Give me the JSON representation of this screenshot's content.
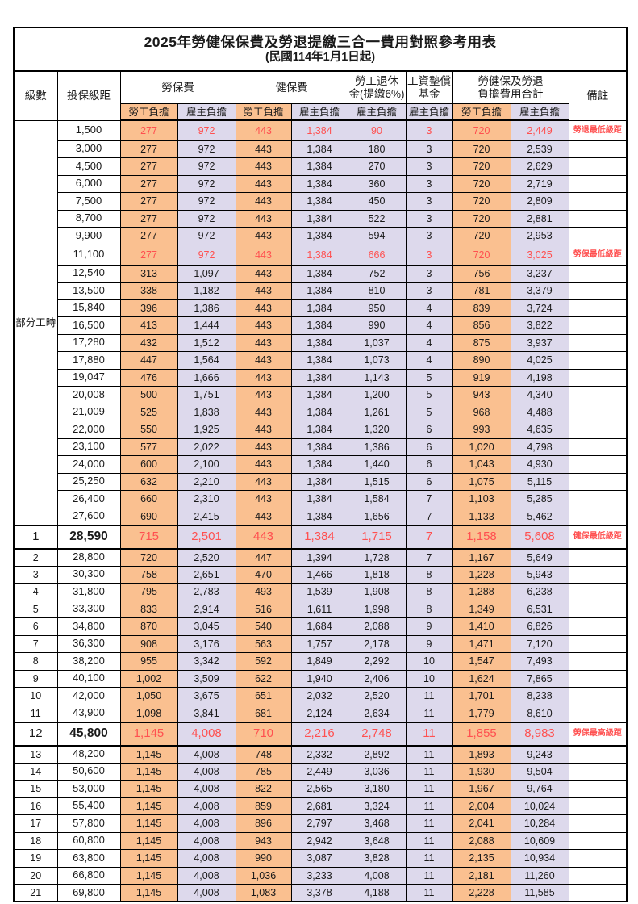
{
  "title": "2025年勞健保保費及勞退提繳三合一費用對照參考用表",
  "subtitle": "(民國114年1月1日起)",
  "colors": {
    "employee_bg": "#FAC090",
    "employer_bg": "#DDD9EC",
    "red": "#FF5050",
    "border": "#000000"
  },
  "header": {
    "level": "級數",
    "bracket": "投保級距",
    "labor_group": "勞保費",
    "health_group": "健保費",
    "pension_line1": "勞工退休",
    "pension_line2": "金(提繳6%)",
    "fund_line1": "工資墊償",
    "fund_line2": "基金",
    "total_line1": "勞健保及勞退",
    "total_line2": "負擔費用合計",
    "note": "備註",
    "employee": "勞工負擔",
    "employer": "雇主負擔"
  },
  "part_time_label": "部分工時",
  "part_time_rowspan": 23,
  "rows": [
    {
      "level": "",
      "bracket": "1,500",
      "labor_emp": "277",
      "labor_er": "972",
      "health_emp": "443",
      "health_er": "1,384",
      "pension": "90",
      "fund": "3",
      "total_emp": "720",
      "total_er": "2,449",
      "note": "勞退最低級距",
      "red": true,
      "tall": true,
      "big": false
    },
    {
      "level": "",
      "bracket": "3,000",
      "labor_emp": "277",
      "labor_er": "972",
      "health_emp": "443",
      "health_er": "1,384",
      "pension": "180",
      "fund": "3",
      "total_emp": "720",
      "total_er": "2,539",
      "note": "",
      "red": false,
      "tall": false,
      "big": false
    },
    {
      "level": "",
      "bracket": "4,500",
      "labor_emp": "277",
      "labor_er": "972",
      "health_emp": "443",
      "health_er": "1,384",
      "pension": "270",
      "fund": "3",
      "total_emp": "720",
      "total_er": "2,629",
      "note": "",
      "red": false,
      "tall": false,
      "big": false
    },
    {
      "level": "",
      "bracket": "6,000",
      "labor_emp": "277",
      "labor_er": "972",
      "health_emp": "443",
      "health_er": "1,384",
      "pension": "360",
      "fund": "3",
      "total_emp": "720",
      "total_er": "2,719",
      "note": "",
      "red": false,
      "tall": false,
      "big": false
    },
    {
      "level": "",
      "bracket": "7,500",
      "labor_emp": "277",
      "labor_er": "972",
      "health_emp": "443",
      "health_er": "1,384",
      "pension": "450",
      "fund": "3",
      "total_emp": "720",
      "total_er": "2,809",
      "note": "",
      "red": false,
      "tall": false,
      "big": false
    },
    {
      "level": "",
      "bracket": "8,700",
      "labor_emp": "277",
      "labor_er": "972",
      "health_emp": "443",
      "health_er": "1,384",
      "pension": "522",
      "fund": "3",
      "total_emp": "720",
      "total_er": "2,881",
      "note": "",
      "red": false,
      "tall": false,
      "big": false
    },
    {
      "level": "",
      "bracket": "9,900",
      "labor_emp": "277",
      "labor_er": "972",
      "health_emp": "443",
      "health_er": "1,384",
      "pension": "594",
      "fund": "3",
      "total_emp": "720",
      "total_er": "2,953",
      "note": "",
      "red": false,
      "tall": false,
      "big": false
    },
    {
      "level": "",
      "bracket": "11,100",
      "labor_emp": "277",
      "labor_er": "972",
      "health_emp": "443",
      "health_er": "1,384",
      "pension": "666",
      "fund": "3",
      "total_emp": "720",
      "total_er": "3,025",
      "note": "勞保最低級距",
      "red": true,
      "tall": true,
      "big": false
    },
    {
      "level": "",
      "bracket": "12,540",
      "labor_emp": "313",
      "labor_er": "1,097",
      "health_emp": "443",
      "health_er": "1,384",
      "pension": "752",
      "fund": "3",
      "total_emp": "756",
      "total_er": "3,237",
      "note": "",
      "red": false,
      "tall": false,
      "big": false
    },
    {
      "level": "",
      "bracket": "13,500",
      "labor_emp": "338",
      "labor_er": "1,182",
      "health_emp": "443",
      "health_er": "1,384",
      "pension": "810",
      "fund": "3",
      "total_emp": "781",
      "total_er": "3,379",
      "note": "",
      "red": false,
      "tall": false,
      "big": false
    },
    {
      "level": "",
      "bracket": "15,840",
      "labor_emp": "396",
      "labor_er": "1,386",
      "health_emp": "443",
      "health_er": "1,384",
      "pension": "950",
      "fund": "4",
      "total_emp": "839",
      "total_er": "3,724",
      "note": "",
      "red": false,
      "tall": false,
      "big": false
    },
    {
      "level": "",
      "bracket": "16,500",
      "labor_emp": "413",
      "labor_er": "1,444",
      "health_emp": "443",
      "health_er": "1,384",
      "pension": "990",
      "fund": "4",
      "total_emp": "856",
      "total_er": "3,822",
      "note": "",
      "red": false,
      "tall": false,
      "big": false
    },
    {
      "level": "",
      "bracket": "17,280",
      "labor_emp": "432",
      "labor_er": "1,512",
      "health_emp": "443",
      "health_er": "1,384",
      "pension": "1,037",
      "fund": "4",
      "total_emp": "875",
      "total_er": "3,937",
      "note": "",
      "red": false,
      "tall": false,
      "big": false
    },
    {
      "level": "",
      "bracket": "17,880",
      "labor_emp": "447",
      "labor_er": "1,564",
      "health_emp": "443",
      "health_er": "1,384",
      "pension": "1,073",
      "fund": "4",
      "total_emp": "890",
      "total_er": "4,025",
      "note": "",
      "red": false,
      "tall": false,
      "big": false
    },
    {
      "level": "",
      "bracket": "19,047",
      "labor_emp": "476",
      "labor_er": "1,666",
      "health_emp": "443",
      "health_er": "1,384",
      "pension": "1,143",
      "fund": "5",
      "total_emp": "919",
      "total_er": "4,198",
      "note": "",
      "red": false,
      "tall": false,
      "big": false
    },
    {
      "level": "",
      "bracket": "20,008",
      "labor_emp": "500",
      "labor_er": "1,751",
      "health_emp": "443",
      "health_er": "1,384",
      "pension": "1,200",
      "fund": "5",
      "total_emp": "943",
      "total_er": "4,340",
      "note": "",
      "red": false,
      "tall": false,
      "big": false
    },
    {
      "level": "",
      "bracket": "21,009",
      "labor_emp": "525",
      "labor_er": "1,838",
      "health_emp": "443",
      "health_er": "1,384",
      "pension": "1,261",
      "fund": "5",
      "total_emp": "968",
      "total_er": "4,488",
      "note": "",
      "red": false,
      "tall": false,
      "big": false
    },
    {
      "level": "",
      "bracket": "22,000",
      "labor_emp": "550",
      "labor_er": "1,925",
      "health_emp": "443",
      "health_er": "1,384",
      "pension": "1,320",
      "fund": "6",
      "total_emp": "993",
      "total_er": "4,635",
      "note": "",
      "red": false,
      "tall": false,
      "big": false
    },
    {
      "level": "",
      "bracket": "23,100",
      "labor_emp": "577",
      "labor_er": "2,022",
      "health_emp": "443",
      "health_er": "1,384",
      "pension": "1,386",
      "fund": "6",
      "total_emp": "1,020",
      "total_er": "4,798",
      "note": "",
      "red": false,
      "tall": false,
      "big": false
    },
    {
      "level": "",
      "bracket": "24,000",
      "labor_emp": "600",
      "labor_er": "2,100",
      "health_emp": "443",
      "health_er": "1,384",
      "pension": "1,440",
      "fund": "6",
      "total_emp": "1,043",
      "total_er": "4,930",
      "note": "",
      "red": false,
      "tall": false,
      "big": false
    },
    {
      "level": "",
      "bracket": "25,250",
      "labor_emp": "632",
      "labor_er": "2,210",
      "health_emp": "443",
      "health_er": "1,384",
      "pension": "1,515",
      "fund": "6",
      "total_emp": "1,075",
      "total_er": "5,115",
      "note": "",
      "red": false,
      "tall": false,
      "big": false
    },
    {
      "level": "",
      "bracket": "26,400",
      "labor_emp": "660",
      "labor_er": "2,310",
      "health_emp": "443",
      "health_er": "1,384",
      "pension": "1,584",
      "fund": "7",
      "total_emp": "1,103",
      "total_er": "5,285",
      "note": "",
      "red": false,
      "tall": false,
      "big": false
    },
    {
      "level": "",
      "bracket": "27,600",
      "labor_emp": "690",
      "labor_er": "2,415",
      "health_emp": "443",
      "health_er": "1,384",
      "pension": "1,656",
      "fund": "7",
      "total_emp": "1,133",
      "total_er": "5,462",
      "note": "",
      "red": false,
      "tall": false,
      "big": false
    },
    {
      "level": "1",
      "bracket": "28,590",
      "labor_emp": "715",
      "labor_er": "2,501",
      "health_emp": "443",
      "health_er": "1,384",
      "pension": "1,715",
      "fund": "7",
      "total_emp": "1,158",
      "total_er": "5,608",
      "note": "健保最低級距",
      "red": true,
      "tall": false,
      "big": true
    },
    {
      "level": "2",
      "bracket": "28,800",
      "labor_emp": "720",
      "labor_er": "2,520",
      "health_emp": "447",
      "health_er": "1,394",
      "pension": "1,728",
      "fund": "7",
      "total_emp": "1,167",
      "total_er": "5,649",
      "note": "",
      "red": false,
      "tall": false,
      "big": false
    },
    {
      "level": "3",
      "bracket": "30,300",
      "labor_emp": "758",
      "labor_er": "2,651",
      "health_emp": "470",
      "health_er": "1,466",
      "pension": "1,818",
      "fund": "8",
      "total_emp": "1,228",
      "total_er": "5,943",
      "note": "",
      "red": false,
      "tall": false,
      "big": false
    },
    {
      "level": "4",
      "bracket": "31,800",
      "labor_emp": "795",
      "labor_er": "2,783",
      "health_emp": "493",
      "health_er": "1,539",
      "pension": "1,908",
      "fund": "8",
      "total_emp": "1,288",
      "total_er": "6,238",
      "note": "",
      "red": false,
      "tall": false,
      "big": false
    },
    {
      "level": "5",
      "bracket": "33,300",
      "labor_emp": "833",
      "labor_er": "2,914",
      "health_emp": "516",
      "health_er": "1,611",
      "pension": "1,998",
      "fund": "8",
      "total_emp": "1,349",
      "total_er": "6,531",
      "note": "",
      "red": false,
      "tall": false,
      "big": false
    },
    {
      "level": "6",
      "bracket": "34,800",
      "labor_emp": "870",
      "labor_er": "3,045",
      "health_emp": "540",
      "health_er": "1,684",
      "pension": "2,088",
      "fund": "9",
      "total_emp": "1,410",
      "total_er": "6,826",
      "note": "",
      "red": false,
      "tall": false,
      "big": false
    },
    {
      "level": "7",
      "bracket": "36,300",
      "labor_emp": "908",
      "labor_er": "3,176",
      "health_emp": "563",
      "health_er": "1,757",
      "pension": "2,178",
      "fund": "9",
      "total_emp": "1,471",
      "total_er": "7,120",
      "note": "",
      "red": false,
      "tall": false,
      "big": false
    },
    {
      "level": "8",
      "bracket": "38,200",
      "labor_emp": "955",
      "labor_er": "3,342",
      "health_emp": "592",
      "health_er": "1,849",
      "pension": "2,292",
      "fund": "10",
      "total_emp": "1,547",
      "total_er": "7,493",
      "note": "",
      "red": false,
      "tall": false,
      "big": false
    },
    {
      "level": "9",
      "bracket": "40,100",
      "labor_emp": "1,002",
      "labor_er": "3,509",
      "health_emp": "622",
      "health_er": "1,940",
      "pension": "2,406",
      "fund": "10",
      "total_emp": "1,624",
      "total_er": "7,865",
      "note": "",
      "red": false,
      "tall": false,
      "big": false
    },
    {
      "level": "10",
      "bracket": "42,000",
      "labor_emp": "1,050",
      "labor_er": "3,675",
      "health_emp": "651",
      "health_er": "2,032",
      "pension": "2,520",
      "fund": "11",
      "total_emp": "1,701",
      "total_er": "8,238",
      "note": "",
      "red": false,
      "tall": false,
      "big": false
    },
    {
      "level": "11",
      "bracket": "43,900",
      "labor_emp": "1,098",
      "labor_er": "3,841",
      "health_emp": "681",
      "health_er": "2,124",
      "pension": "2,634",
      "fund": "11",
      "total_emp": "1,779",
      "total_er": "8,610",
      "note": "",
      "red": false,
      "tall": false,
      "big": false
    },
    {
      "level": "12",
      "bracket": "45,800",
      "labor_emp": "1,145",
      "labor_er": "4,008",
      "health_emp": "710",
      "health_er": "2,216",
      "pension": "2,748",
      "fund": "11",
      "total_emp": "1,855",
      "total_er": "8,983",
      "note": "勞保最高級距",
      "red": true,
      "tall": false,
      "big": true
    },
    {
      "level": "13",
      "bracket": "48,200",
      "labor_emp": "1,145",
      "labor_er": "4,008",
      "health_emp": "748",
      "health_er": "2,332",
      "pension": "2,892",
      "fund": "11",
      "total_emp": "1,893",
      "total_er": "9,243",
      "note": "",
      "red": false,
      "tall": false,
      "big": false
    },
    {
      "level": "14",
      "bracket": "50,600",
      "labor_emp": "1,145",
      "labor_er": "4,008",
      "health_emp": "785",
      "health_er": "2,449",
      "pension": "3,036",
      "fund": "11",
      "total_emp": "1,930",
      "total_er": "9,504",
      "note": "",
      "red": false,
      "tall": false,
      "big": false
    },
    {
      "level": "15",
      "bracket": "53,000",
      "labor_emp": "1,145",
      "labor_er": "4,008",
      "health_emp": "822",
      "health_er": "2,565",
      "pension": "3,180",
      "fund": "11",
      "total_emp": "1,967",
      "total_er": "9,764",
      "note": "",
      "red": false,
      "tall": false,
      "big": false
    },
    {
      "level": "16",
      "bracket": "55,400",
      "labor_emp": "1,145",
      "labor_er": "4,008",
      "health_emp": "859",
      "health_er": "2,681",
      "pension": "3,324",
      "fund": "11",
      "total_emp": "2,004",
      "total_er": "10,024",
      "note": "",
      "red": false,
      "tall": false,
      "big": false
    },
    {
      "level": "17",
      "bracket": "57,800",
      "labor_emp": "1,145",
      "labor_er": "4,008",
      "health_emp": "896",
      "health_er": "2,797",
      "pension": "3,468",
      "fund": "11",
      "total_emp": "2,041",
      "total_er": "10,284",
      "note": "",
      "red": false,
      "tall": false,
      "big": false
    },
    {
      "level": "18",
      "bracket": "60,800",
      "labor_emp": "1,145",
      "labor_er": "4,008",
      "health_emp": "943",
      "health_er": "2,942",
      "pension": "3,648",
      "fund": "11",
      "total_emp": "2,088",
      "total_er": "10,609",
      "note": "",
      "red": false,
      "tall": false,
      "big": false
    },
    {
      "level": "19",
      "bracket": "63,800",
      "labor_emp": "1,145",
      "labor_er": "4,008",
      "health_emp": "990",
      "health_er": "3,087",
      "pension": "3,828",
      "fund": "11",
      "total_emp": "2,135",
      "total_er": "10,934",
      "note": "",
      "red": false,
      "tall": false,
      "big": false
    },
    {
      "level": "20",
      "bracket": "66,800",
      "labor_emp": "1,145",
      "labor_er": "4,008",
      "health_emp": "1,036",
      "health_er": "3,233",
      "pension": "4,008",
      "fund": "11",
      "total_emp": "2,181",
      "total_er": "11,260",
      "note": "",
      "red": false,
      "tall": false,
      "big": false
    },
    {
      "level": "21",
      "bracket": "69,800",
      "labor_emp": "1,145",
      "labor_er": "4,008",
      "health_emp": "1,083",
      "health_er": "3,378",
      "pension": "4,188",
      "fund": "11",
      "total_emp": "2,228",
      "total_er": "11,585",
      "note": "",
      "red": false,
      "tall": false,
      "big": false
    }
  ]
}
